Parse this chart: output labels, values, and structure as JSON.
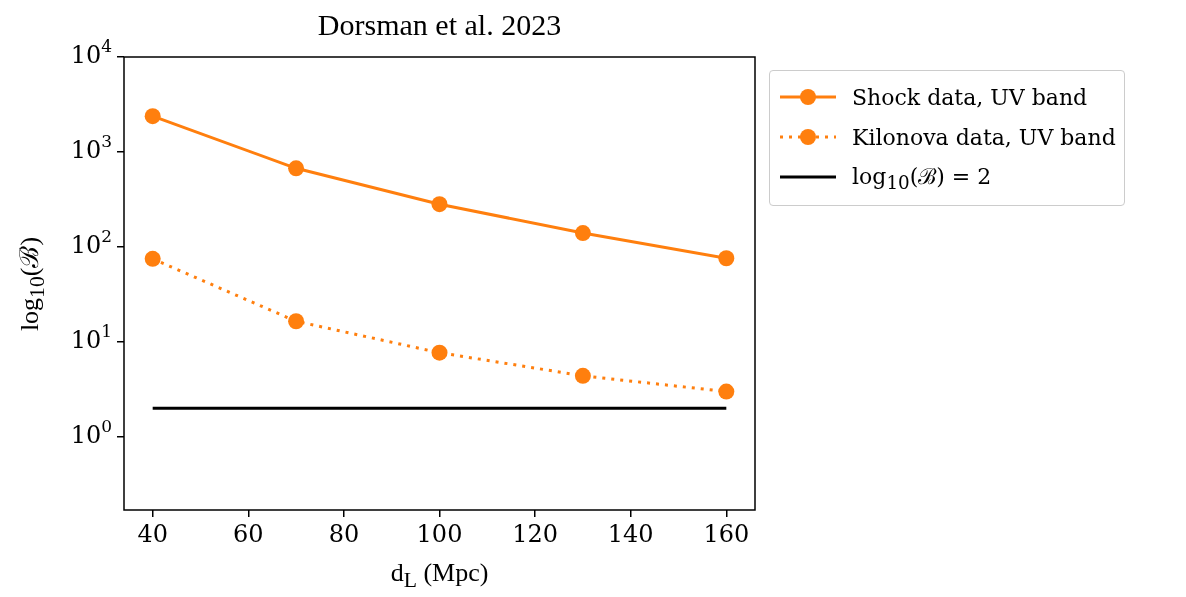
{
  "chart_data": {
    "type": "line",
    "title": "Dorsman et al. 2023",
    "xlabel": "d$_{L}$ (Mpc)",
    "ylabel": "log$_{10}$(ℬ)",
    "x": [
      40,
      70,
      100,
      130,
      160
    ],
    "series": [
      {
        "name": "Shock data, UV band",
        "color": "#ff7f0e",
        "values": [
          2380,
          673,
          282,
          140,
          76
        ],
        "marker": "circle",
        "line_style": "solid"
      },
      {
        "name": "Kilonova data, UV band",
        "color": "#ff7f0e",
        "values": [
          75,
          16.5,
          7.7,
          4.4,
          3.0
        ],
        "marker": "circle",
        "line_style": "dotted"
      },
      {
        "name": "log$_{10}$(ℬ) = 2",
        "color": "#000000",
        "x": [
          40,
          160
        ],
        "values": [
          2,
          2
        ],
        "marker": "none",
        "line_style": "solid"
      }
    ],
    "log": "y",
    "legend": "right",
    "xlim": [
      34,
      166
    ],
    "xticks": [
      40,
      60,
      80,
      100,
      120,
      140,
      160
    ],
    "ylim": [
      0.17,
      10000
    ],
    "yticks": [
      {
        "value": 1,
        "label": "10$^{0}$"
      },
      {
        "value": 10,
        "label": "10$^{1}$"
      },
      {
        "value": 100,
        "label": "10$^{2}$"
      },
      {
        "value": 1000,
        "label": "10$^{3}$"
      },
      {
        "value": 10000,
        "label": "10$^{4}$"
      }
    ]
  }
}
